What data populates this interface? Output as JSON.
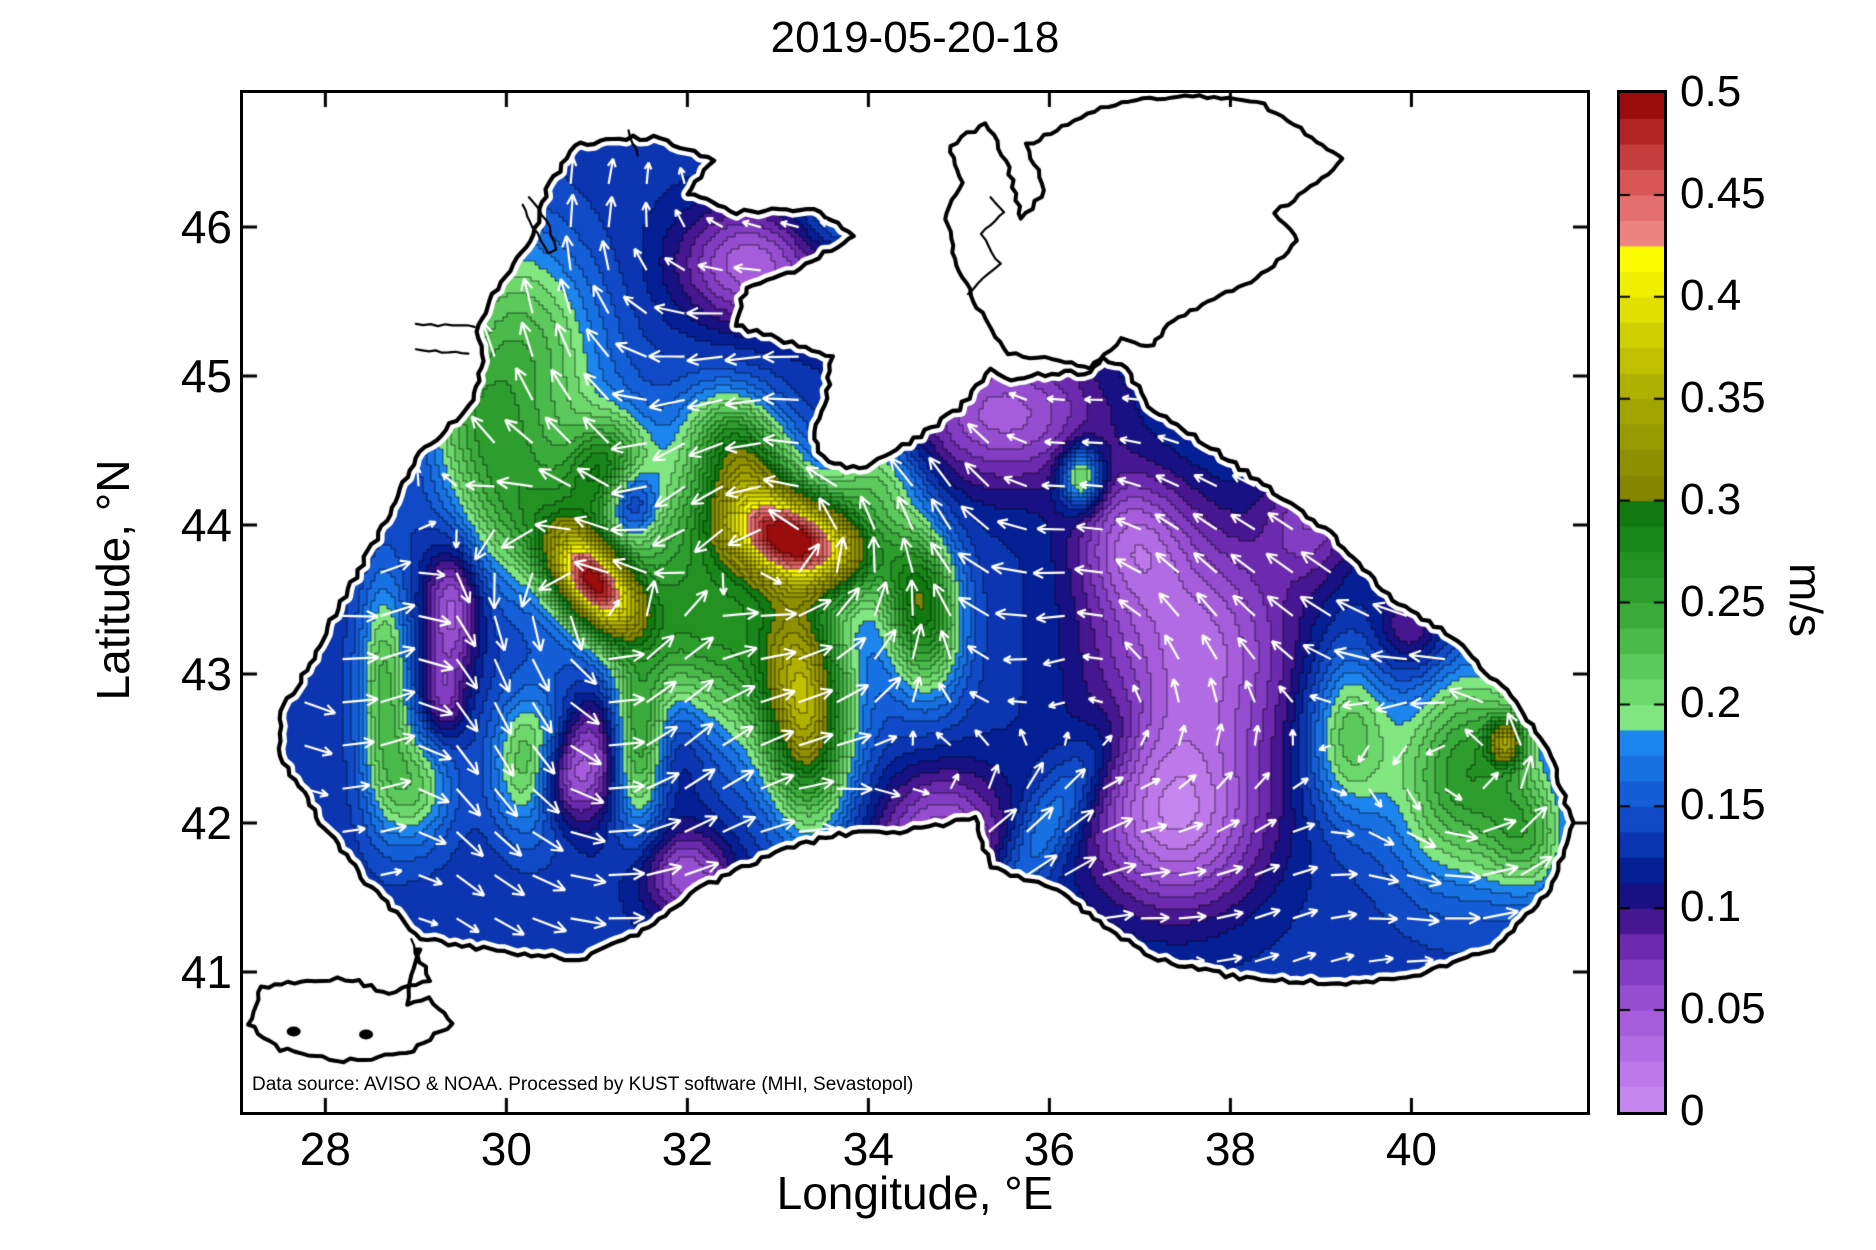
{
  "title": "2019-05-20-18",
  "annotation": "Data source: AVISO & NOAA. Processed by KUST software (MHI, Sevastopol)",
  "axes": {
    "xlabel": "Longitude, °E",
    "ylabel": "Latitude, °N",
    "xlim": [
      27.09,
      41.94
    ],
    "ylim": [
      40.06,
      46.9
    ],
    "xticks": [
      28,
      30,
      32,
      34,
      36,
      38,
      40
    ],
    "yticks": [
      41,
      42,
      43,
      44,
      45,
      46
    ]
  },
  "colorbar": {
    "label": "m/s",
    "min": 0,
    "max": 0.5,
    "ticks": [
      0,
      0.05,
      0.1,
      0.15,
      0.2,
      0.25,
      0.3,
      0.35,
      0.4,
      0.45,
      0.5
    ],
    "levels": 40
  },
  "colormap_stops": [
    [
      0.0,
      "#cb8cf2"
    ],
    [
      0.025,
      "#b873e6"
    ],
    [
      0.05,
      "#9f56d8"
    ],
    [
      0.075,
      "#7a35bc"
    ],
    [
      0.088,
      "#5c1f9e"
    ],
    [
      0.1,
      "#2e0f80"
    ],
    [
      0.113,
      "#001486"
    ],
    [
      0.125,
      "#0a2ca6"
    ],
    [
      0.15,
      "#1254d2"
    ],
    [
      0.175,
      "#1a7ae8"
    ],
    [
      0.188,
      "#2090f5"
    ],
    [
      0.191,
      "#84ea84"
    ],
    [
      0.213,
      "#62d062"
    ],
    [
      0.25,
      "#32a432"
    ],
    [
      0.288,
      "#148014"
    ],
    [
      0.304,
      "#0a700a"
    ],
    [
      0.306,
      "#848600"
    ],
    [
      0.35,
      "#a8a800"
    ],
    [
      0.4,
      "#e8e800"
    ],
    [
      0.422,
      "#ffff00"
    ],
    [
      0.426,
      "#f28c8c"
    ],
    [
      0.45,
      "#e06464"
    ],
    [
      0.475,
      "#bc3030"
    ],
    [
      0.5,
      "#900000"
    ]
  ],
  "chart_data": {
    "type": "heatmap",
    "subtype": "filled-contour-map-with-quiver",
    "region": "Black Sea surface current speed with velocity vectors",
    "units": "m/s",
    "value_range": [
      0,
      0.5
    ],
    "contour_levels": 40,
    "base_speed": 0.13,
    "speed_blobs": [
      [
        30.2,
        45.2,
        0.9,
        0.75,
        -30,
        0.1
      ],
      [
        30.1,
        44.15,
        0.65,
        0.55,
        0,
        0.09
      ],
      [
        29.6,
        44.7,
        0.5,
        0.5,
        0,
        0.06
      ],
      [
        30.95,
        43.62,
        0.52,
        0.27,
        -28,
        0.3
      ],
      [
        33.22,
        43.9,
        0.8,
        0.3,
        -8,
        0.31
      ],
      [
        32.2,
        43.4,
        1.4,
        0.8,
        -15,
        0.14
      ],
      [
        31.1,
        44.35,
        0.45,
        0.35,
        20,
        0.12
      ],
      [
        32.6,
        44.45,
        0.6,
        0.4,
        -20,
        0.15
      ],
      [
        33.3,
        42.75,
        0.45,
        0.75,
        8,
        0.18
      ],
      [
        34.6,
        43.45,
        0.4,
        0.55,
        12,
        0.16
      ],
      [
        31.45,
        42.5,
        0.32,
        0.5,
        0,
        0.2
      ],
      [
        28.65,
        42.9,
        0.28,
        0.75,
        0,
        0.1
      ],
      [
        30.3,
        42.4,
        0.42,
        0.45,
        0,
        0.12
      ],
      [
        29.0,
        42.25,
        0.4,
        0.4,
        0,
        0.08
      ],
      [
        36.35,
        44.32,
        0.22,
        0.2,
        0,
        0.12
      ],
      [
        34.05,
        44.3,
        0.5,
        0.35,
        0,
        0.08
      ],
      [
        40.6,
        42.35,
        0.8,
        0.7,
        25,
        0.13
      ],
      [
        39.3,
        42.6,
        0.45,
        0.55,
        0,
        0.09
      ],
      [
        41.05,
        42.55,
        0.2,
        0.16,
        0,
        0.13
      ],
      [
        41.3,
        41.9,
        0.45,
        0.4,
        0,
        0.08
      ],
      [
        36.0,
        42.0,
        1.0,
        0.28,
        40,
        0.06
      ],
      [
        33.8,
        46.05,
        0.6,
        0.3,
        0,
        0.05
      ],
      [
        37.6,
        43.15,
        1.1,
        0.85,
        0,
        -0.1
      ],
      [
        37.4,
        42.0,
        0.95,
        0.6,
        0,
        -0.105
      ],
      [
        36.9,
        43.9,
        0.6,
        0.45,
        0,
        -0.07
      ],
      [
        35.5,
        44.75,
        1.1,
        0.5,
        0,
        -0.085
      ],
      [
        32.7,
        45.75,
        0.8,
        0.4,
        0,
        -0.09
      ],
      [
        34.0,
        45.55,
        0.6,
        0.35,
        0,
        -0.06
      ],
      [
        31.35,
        44.15,
        0.3,
        0.25,
        0,
        -0.1
      ],
      [
        31.3,
        42.5,
        0.7,
        0.45,
        0,
        -0.115
      ],
      [
        30.6,
        42.3,
        0.35,
        0.3,
        0,
        -0.08
      ],
      [
        32.0,
        41.65,
        0.5,
        0.3,
        0,
        -0.08
      ],
      [
        34.8,
        41.85,
        0.75,
        0.5,
        0,
        -0.095
      ],
      [
        29.4,
        43.45,
        0.3,
        0.4,
        0,
        -0.09
      ],
      [
        29.3,
        42.85,
        0.25,
        0.3,
        0,
        -0.06
      ],
      [
        38.9,
        44.05,
        0.5,
        0.4,
        0,
        -0.06
      ],
      [
        40.0,
        43.3,
        0.4,
        0.3,
        0,
        -0.05
      ]
    ],
    "flow": {
      "vortices": [
        [
          30.95,
          43.62,
          0.8,
          0.9
        ],
        [
          33.25,
          43.9,
          0.95,
          0.95
        ],
        [
          31.35,
          44.15,
          0.5,
          -0.55
        ],
        [
          32.1,
          43.4,
          1.7,
          0.4
        ],
        [
          37.5,
          42.6,
          1.7,
          0.3
        ],
        [
          40.75,
          42.35,
          1.0,
          0.5
        ],
        [
          30.9,
          42.45,
          0.95,
          0.55
        ],
        [
          28.4,
          44.3,
          1.6,
          0.45
        ],
        [
          34.8,
          41.9,
          0.9,
          0.35
        ]
      ],
      "jets": [
        [
          30.3,
          45.0,
          1.3,
          1.1,
          0.17,
          0.27
        ],
        [
          28.6,
          42.9,
          0.55,
          1.3,
          0.05,
          0.22
        ],
        [
          33.5,
          41.75,
          2.3,
          0.5,
          0.22,
          0.06
        ],
        [
          39.6,
          43.6,
          0.9,
          0.7,
          -0.14,
          0.12
        ],
        [
          37.3,
          43.2,
          0.9,
          1.1,
          0.02,
          0.18
        ],
        [
          35.0,
          43.62,
          1.3,
          0.45,
          -0.24,
          0.02
        ],
        [
          33.9,
          44.3,
          0.9,
          0.3,
          -0.18,
          -0.03
        ],
        [
          35.9,
          41.9,
          0.8,
          0.55,
          0.15,
          0.18
        ],
        [
          33.2,
          45.05,
          0.8,
          0.5,
          -0.13,
          -0.09
        ],
        [
          31.1,
          46.1,
          1.0,
          0.45,
          0.1,
          0.12
        ]
      ],
      "quiver_grid": {
        "dlon": 0.42,
        "dlat": 0.29
      }
    },
    "coastlines": {
      "sea": [
        [
          29.05,
          41.22
        ],
        [
          29.9,
          41.14
        ],
        [
          30.8,
          41.08
        ],
        [
          31.45,
          41.25
        ],
        [
          32.1,
          41.55
        ],
        [
          32.9,
          41.78
        ],
        [
          33.6,
          41.92
        ],
        [
          34.35,
          41.94
        ],
        [
          34.9,
          42.0
        ],
        [
          35.18,
          42.04
        ],
        [
          35.35,
          41.7
        ],
        [
          36.1,
          41.56
        ],
        [
          36.6,
          41.3
        ],
        [
          37.2,
          41.08
        ],
        [
          38.1,
          40.96
        ],
        [
          39.2,
          40.92
        ],
        [
          40.1,
          40.98
        ],
        [
          40.9,
          41.15
        ],
        [
          41.55,
          41.55
        ],
        [
          41.78,
          42.0
        ],
        [
          41.55,
          42.45
        ],
        [
          41.1,
          42.85
        ],
        [
          40.45,
          43.25
        ],
        [
          39.8,
          43.5
        ],
        [
          39.1,
          43.95
        ],
        [
          38.3,
          44.3
        ],
        [
          37.6,
          44.6
        ],
        [
          37.1,
          44.8
        ],
        [
          36.85,
          45.05
        ],
        [
          36.6,
          45.12
        ],
        [
          36.45,
          45.02
        ],
        [
          36.1,
          45.02
        ],
        [
          35.5,
          44.98
        ],
        [
          35.35,
          45.05
        ],
        [
          35.0,
          44.78
        ],
        [
          34.45,
          44.55
        ],
        [
          33.9,
          44.38
        ],
        [
          33.55,
          44.42
        ],
        [
          33.38,
          44.58
        ],
        [
          33.55,
          44.9
        ],
        [
          33.6,
          45.12
        ],
        [
          33.0,
          45.25
        ],
        [
          32.52,
          45.34
        ],
        [
          32.65,
          45.6
        ],
        [
          33.25,
          45.72
        ],
        [
          33.85,
          45.95
        ],
        [
          33.4,
          46.12
        ],
        [
          32.55,
          46.1
        ],
        [
          32.0,
          46.22
        ],
        [
          32.3,
          46.45
        ],
        [
          31.7,
          46.6
        ],
        [
          31.25,
          46.6
        ],
        [
          30.75,
          46.55
        ],
        [
          30.45,
          46.25
        ],
        [
          30.3,
          45.95
        ],
        [
          29.85,
          45.55
        ],
        [
          29.68,
          45.3
        ],
        [
          29.75,
          45.1
        ],
        [
          29.6,
          44.8
        ],
        [
          29.0,
          44.45
        ],
        [
          28.6,
          43.95
        ],
        [
          28.1,
          43.4
        ],
        [
          27.9,
          43.15
        ],
        [
          27.52,
          42.75
        ],
        [
          27.5,
          42.45
        ],
        [
          27.95,
          42.0
        ],
        [
          28.45,
          41.6
        ],
        [
          29.05,
          41.22
        ]
      ],
      "azov": [
        [
          36.45,
          45.05
        ],
        [
          36.1,
          45.1
        ],
        [
          35.55,
          45.15
        ],
        [
          35.35,
          45.3
        ],
        [
          35.0,
          45.7
        ],
        [
          34.85,
          46.1
        ],
        [
          35.05,
          46.3
        ],
        [
          34.9,
          46.55
        ],
        [
          35.3,
          46.7
        ],
        [
          35.55,
          46.4
        ],
        [
          35.7,
          46.05
        ],
        [
          35.95,
          46.25
        ],
        [
          35.75,
          46.55
        ],
        [
          36.2,
          46.7
        ],
        [
          36.8,
          46.85
        ],
        [
          37.5,
          46.88
        ],
        [
          38.3,
          46.85
        ],
        [
          38.9,
          46.6
        ],
        [
          39.25,
          46.45
        ],
        [
          38.95,
          46.3
        ],
        [
          38.5,
          46.1
        ],
        [
          38.75,
          45.9
        ],
        [
          38.3,
          45.65
        ],
        [
          37.75,
          45.5
        ],
        [
          37.3,
          45.35
        ],
        [
          37.15,
          45.2
        ],
        [
          36.8,
          45.25
        ],
        [
          36.6,
          45.15
        ],
        [
          36.45,
          45.05
        ]
      ],
      "marmara": [
        [
          29.0,
          41.15
        ],
        [
          29.15,
          40.95
        ],
        [
          28.7,
          40.85
        ],
        [
          28.3,
          40.95
        ],
        [
          27.8,
          40.95
        ],
        [
          27.3,
          40.9
        ],
        [
          27.15,
          40.65
        ],
        [
          27.5,
          40.48
        ],
        [
          28.2,
          40.4
        ],
        [
          28.9,
          40.45
        ],
        [
          29.4,
          40.65
        ],
        [
          29.15,
          40.82
        ],
        [
          28.9,
          40.78
        ],
        [
          28.95,
          40.98
        ],
        [
          29.05,
          41.15
        ]
      ],
      "extras": [
        [
          [
            30.25,
            46.2
          ],
          [
            30.45,
            46.05
          ],
          [
            30.55,
            45.85
          ],
          [
            30.45,
            45.82
          ],
          [
            30.3,
            46.0
          ],
          [
            30.18,
            46.15
          ]
        ],
        [
          [
            35.1,
            45.55
          ],
          [
            35.45,
            45.75
          ],
          [
            35.25,
            45.95
          ],
          [
            35.5,
            46.1
          ],
          [
            35.35,
            46.2
          ]
        ],
        [
          [
            29.0,
            45.35
          ],
          [
            29.65,
            45.33
          ]
        ],
        [
          [
            29.0,
            45.18
          ],
          [
            29.58,
            45.15
          ]
        ],
        [
          [
            31.35,
            46.65
          ],
          [
            31.45,
            46.48
          ]
        ],
        [
          [
            28.95,
            41.22
          ],
          [
            29.02,
            41.08
          ]
        ]
      ],
      "islands": [
        [
          27.65,
          40.6
        ],
        [
          28.45,
          40.58
        ]
      ]
    }
  }
}
